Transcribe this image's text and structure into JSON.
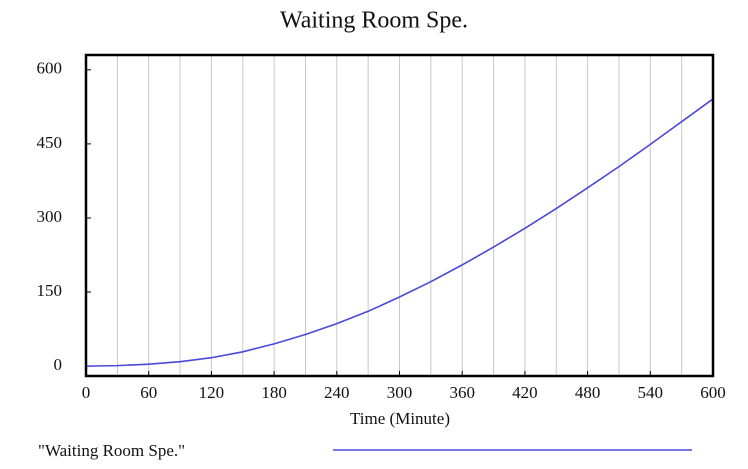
{
  "chart_data": {
    "type": "line",
    "title": "Waiting Room Spe.",
    "x_label": "Time (Minute)",
    "x": [
      0,
      30,
      60,
      90,
      120,
      150,
      180,
      210,
      240,
      270,
      300,
      330,
      360,
      390,
      420,
      450,
      480,
      510,
      540,
      570,
      600
    ],
    "series": [
      {
        "name": "\"Waiting Room Spe.\"",
        "color": "#4a4ad8",
        "values": [
          0,
          1,
          4,
          9,
          17,
          29,
          45,
          64,
          86,
          111,
          140,
          171,
          205,
          241,
          279,
          319,
          361,
          404,
          449,
          495,
          541
        ]
      }
    ],
    "xlim": [
      0,
      600
    ],
    "xticks": [
      0,
      60,
      120,
      180,
      240,
      300,
      360,
      420,
      480,
      540,
      600
    ],
    "x_grid_divisions": 20,
    "ylim": [
      -20,
      630
    ],
    "yticks": [
      0,
      150,
      300,
      450,
      600
    ],
    "grid": true
  }
}
